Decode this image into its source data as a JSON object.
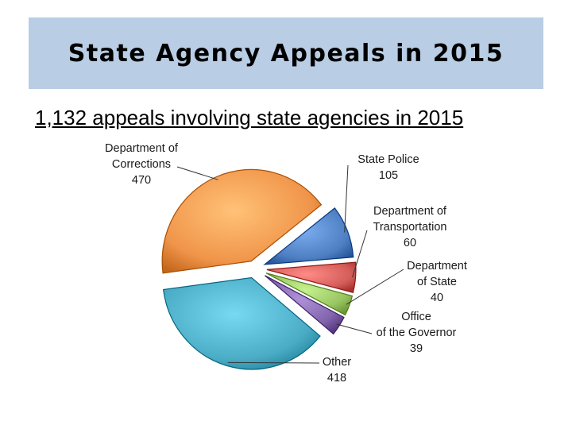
{
  "title": "State Agency Appeals in 2015",
  "subtitle": "1,132 appeals involving state agencies in 2015",
  "chart_data": {
    "type": "pie",
    "slices": [
      {
        "label_lines": [
          "State Police",
          "105"
        ],
        "value": 105,
        "color": "#4f7fc3"
      },
      {
        "label_lines": [
          "Department of",
          "Transportation",
          "60"
        ],
        "value": 60,
        "color": "#d55e5a"
      },
      {
        "label_lines": [
          "Department",
          "of State",
          "40"
        ],
        "value": 40,
        "color": "#98c561"
      },
      {
        "label_lines": [
          "Office",
          "of the Governor",
          "39"
        ],
        "value": 39,
        "color": "#8264ad"
      },
      {
        "label_lines": [
          "Other",
          "418"
        ],
        "value": 418,
        "color": "#4bacc6"
      },
      {
        "label_lines": [
          "Department of",
          "Corrections",
          "470"
        ],
        "value": 470,
        "color": "#f0954a"
      }
    ],
    "start_angle_deg": 38,
    "exploded": true,
    "legend": "none"
  }
}
